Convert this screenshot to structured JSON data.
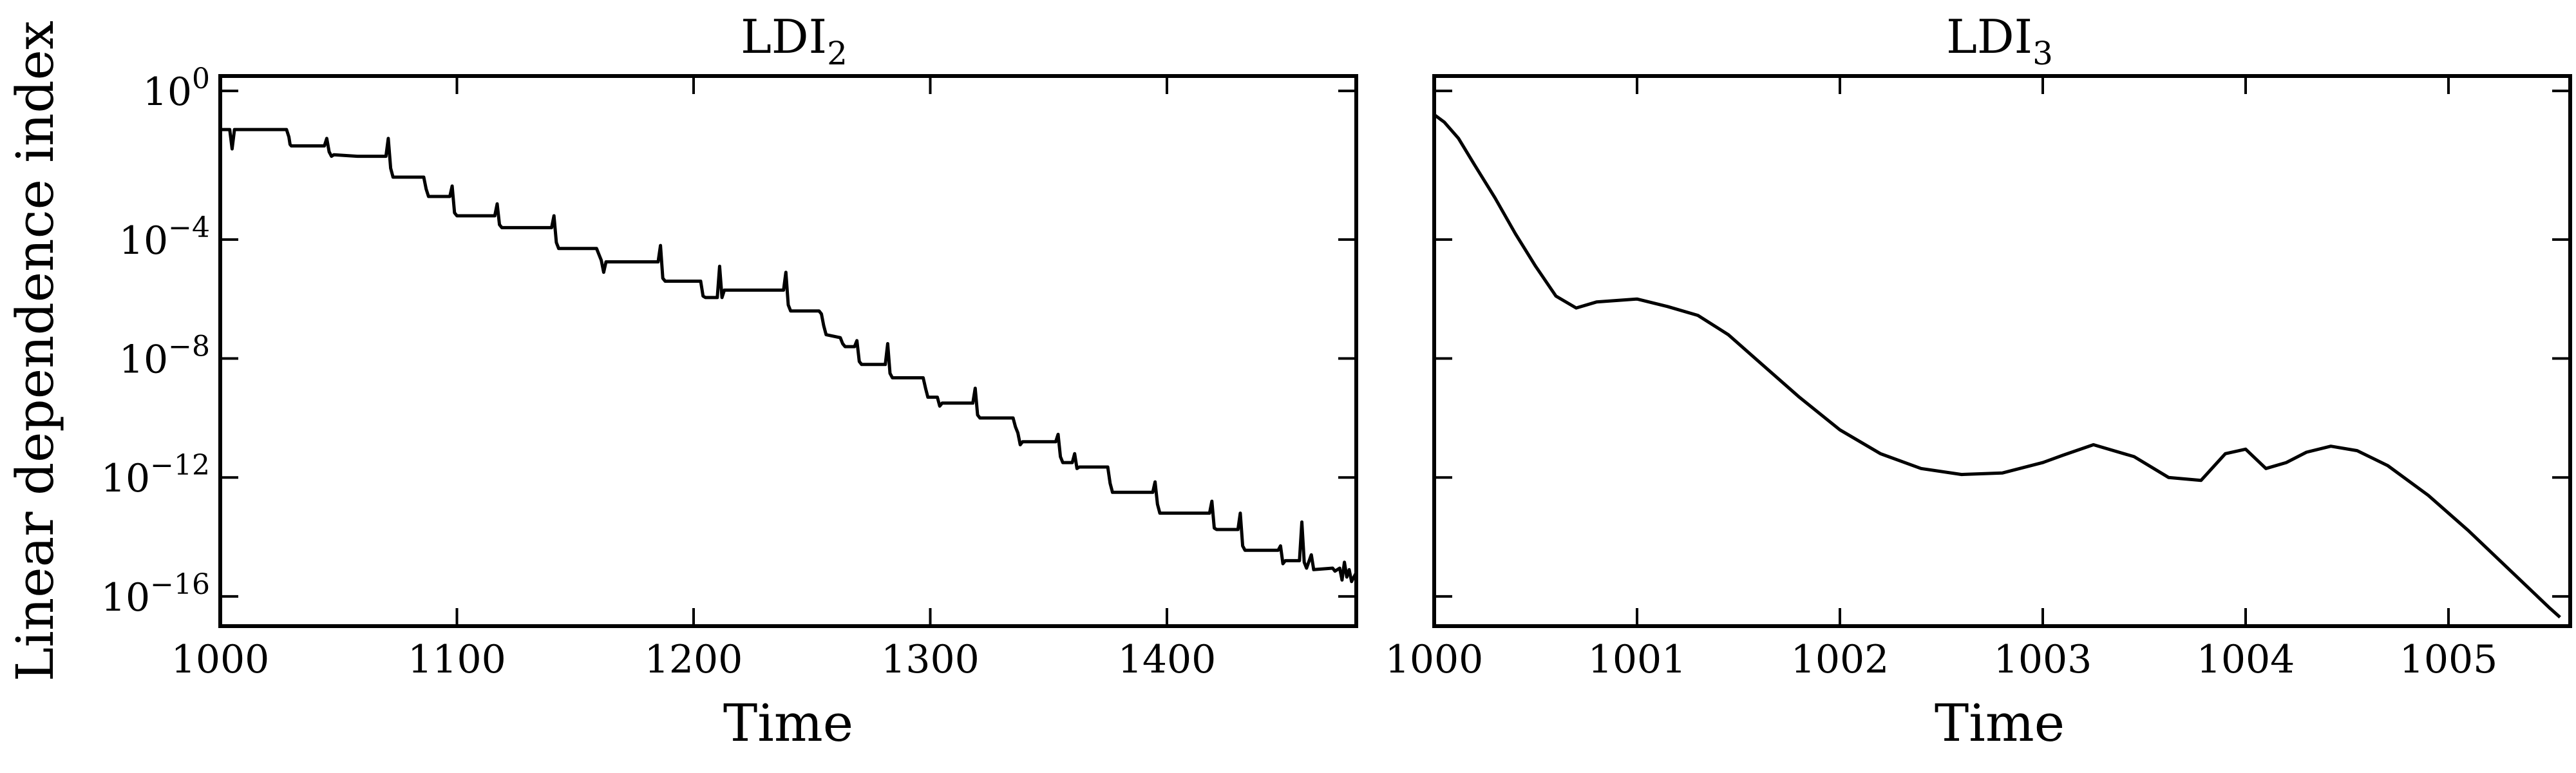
{
  "chart_data": [
    {
      "type": "line",
      "title": "LDI",
      "title_subscript": "2",
      "xlabel": "Time",
      "ylabel": "Linear dependence index",
      "y_scale": "log",
      "xlim": [
        1000,
        1480
      ],
      "ylim_exponent": [
        -17,
        1.5
      ],
      "xticks": [
        1000,
        1100,
        1200,
        1300,
        1400
      ],
      "yticks": [
        {
          "base": "10",
          "exp": "0",
          "value": 1
        },
        {
          "base": "10",
          "exp": "−4",
          "value": -4
        },
        {
          "base": "10",
          "exp": "−8",
          "value": -8
        },
        {
          "base": "10",
          "exp": "−12",
          "value": -12
        },
        {
          "base": "10",
          "exp": "−16",
          "value": -16
        }
      ],
      "series_color": "#000000",
      "series": [
        {
          "log10_y": [
            [
              1000,
              -0.3
            ],
            [
              1004,
              -0.3
            ],
            [
              1005,
              -0.95
            ],
            [
              1006,
              -0.3
            ],
            [
              1028,
              -0.3
            ],
            [
              1029,
              -0.55
            ],
            [
              1029.5,
              -0.8
            ],
            [
              1030,
              -0.85
            ],
            [
              1044,
              -0.85
            ],
            [
              1045,
              -0.6
            ],
            [
              1046,
              -1.05
            ],
            [
              1047,
              -1.2
            ],
            [
              1048,
              -1.15
            ],
            [
              1058,
              -1.2
            ],
            [
              1070,
              -1.2
            ],
            [
              1071,
              -0.6
            ],
            [
              1072,
              -1.6
            ],
            [
              1073,
              -1.9
            ],
            [
              1086,
              -1.9
            ],
            [
              1087,
              -2.3
            ],
            [
              1088,
              -2.55
            ],
            [
              1097,
              -2.55
            ],
            [
              1098,
              -2.2
            ],
            [
              1099,
              -3.1
            ],
            [
              1100,
              -3.2
            ],
            [
              1116,
              -3.2
            ],
            [
              1117,
              -2.8
            ],
            [
              1118,
              -3.5
            ],
            [
              1119,
              -3.6
            ],
            [
              1140,
              -3.6
            ],
            [
              1141,
              -3.2
            ],
            [
              1142,
              -4.1
            ],
            [
              1143,
              -4.3
            ],
            [
              1159,
              -4.3
            ],
            [
              1160,
              -4.5
            ],
            [
              1161,
              -4.7
            ],
            [
              1162,
              -5.1
            ],
            [
              1163,
              -4.75
            ],
            [
              1185,
              -4.75
            ],
            [
              1186,
              -4.2
            ],
            [
              1187,
              -5.3
            ],
            [
              1188,
              -5.4
            ],
            [
              1203,
              -5.4
            ],
            [
              1204,
              -5.9
            ],
            [
              1205,
              -5.95
            ],
            [
              1210,
              -5.95
            ],
            [
              1211,
              -4.9
            ],
            [
              1212,
              -5.95
            ],
            [
              1213,
              -5.7
            ],
            [
              1238,
              -5.7
            ],
            [
              1239,
              -5.1
            ],
            [
              1240,
              -6.2
            ],
            [
              1241,
              -6.4
            ],
            [
              1253,
              -6.4
            ],
            [
              1254,
              -6.5
            ],
            [
              1255,
              -6.9
            ],
            [
              1256,
              -7.2
            ],
            [
              1262,
              -7.3
            ],
            [
              1263,
              -7.5
            ],
            [
              1264,
              -7.6
            ],
            [
              1268,
              -7.6
            ],
            [
              1269,
              -7.4
            ],
            [
              1270,
              -8.1
            ],
            [
              1271,
              -8.2
            ],
            [
              1281,
              -8.2
            ],
            [
              1282,
              -7.5
            ],
            [
              1283,
              -8.5
            ],
            [
              1284,
              -8.65
            ],
            [
              1297,
              -8.65
            ],
            [
              1298,
              -9.0
            ],
            [
              1299,
              -9.3
            ],
            [
              1303,
              -9.3
            ],
            [
              1304,
              -9.6
            ],
            [
              1305,
              -9.5
            ],
            [
              1318,
              -9.5
            ],
            [
              1319,
              -9.0
            ],
            [
              1320,
              -9.9
            ],
            [
              1321,
              -10.0
            ],
            [
              1335,
              -10.0
            ],
            [
              1336,
              -10.3
            ],
            [
              1337,
              -10.5
            ],
            [
              1338,
              -10.9
            ],
            [
              1339,
              -10.8
            ],
            [
              1353,
              -10.8
            ],
            [
              1354,
              -10.55
            ],
            [
              1355,
              -11.3
            ],
            [
              1356,
              -11.5
            ],
            [
              1360,
              -11.5
            ],
            [
              1361,
              -11.2
            ],
            [
              1362,
              -11.7
            ],
            [
              1363,
              -11.65
            ],
            [
              1375,
              -11.65
            ],
            [
              1376,
              -12.2
            ],
            [
              1377,
              -12.5
            ],
            [
              1394,
              -12.5
            ],
            [
              1395,
              -12.15
            ],
            [
              1396,
              -12.9
            ],
            [
              1397,
              -13.2
            ],
            [
              1418,
              -13.2
            ],
            [
              1419,
              -12.8
            ],
            [
              1420,
              -13.7
            ],
            [
              1421,
              -13.75
            ],
            [
              1430,
              -13.75
            ],
            [
              1431,
              -13.2
            ],
            [
              1432,
              -14.3
            ],
            [
              1433,
              -14.45
            ],
            [
              1447,
              -14.45
            ],
            [
              1448,
              -14.3
            ],
            [
              1449,
              -14.9
            ],
            [
              1450,
              -14.8
            ],
            [
              1456,
              -14.8
            ],
            [
              1457,
              -13.5
            ],
            [
              1458,
              -14.85
            ],
            [
              1459,
              -15.05
            ],
            [
              1461,
              -14.6
            ],
            [
              1462,
              -15.1
            ],
            [
              1470,
              -15.05
            ],
            [
              1471,
              -15.15
            ],
            [
              1473,
              -15.05
            ],
            [
              1474,
              -15.45
            ],
            [
              1475,
              -14.85
            ],
            [
              1476,
              -15.35
            ],
            [
              1477,
              -15.1
            ],
            [
              1478,
              -15.5
            ],
            [
              1480,
              -15.2
            ]
          ]
        }
      ]
    },
    {
      "type": "line",
      "title": "LDI",
      "title_subscript": "3",
      "xlabel": "Time",
      "ylabel": "",
      "y_scale": "log",
      "xlim": [
        1000,
        1005.6
      ],
      "ylim_exponent": [
        -17,
        1.5
      ],
      "xticks": [
        1000,
        1001,
        1002,
        1003,
        1004,
        1005
      ],
      "yticks_shared": true,
      "series_color": "#000000",
      "series": [
        {
          "log10_y": [
            [
              1000.0,
              0.2
            ],
            [
              1000.05,
              -0.05
            ],
            [
              1000.12,
              -0.6
            ],
            [
              1000.2,
              -1.5
            ],
            [
              1000.3,
              -2.6
            ],
            [
              1000.4,
              -3.8
            ],
            [
              1000.5,
              -4.9
            ],
            [
              1000.6,
              -5.9
            ],
            [
              1000.7,
              -6.3
            ],
            [
              1000.8,
              -6.1
            ],
            [
              1001.0,
              -6.0
            ],
            [
              1001.15,
              -6.25
            ],
            [
              1001.3,
              -6.55
            ],
            [
              1001.45,
              -7.2
            ],
            [
              1001.6,
              -8.1
            ],
            [
              1001.8,
              -9.3
            ],
            [
              1002.0,
              -10.4
            ],
            [
              1002.2,
              -11.2
            ],
            [
              1002.4,
              -11.7
            ],
            [
              1002.6,
              -11.9
            ],
            [
              1002.8,
              -11.85
            ],
            [
              1003.0,
              -11.5
            ],
            [
              1003.1,
              -11.25
            ],
            [
              1003.25,
              -10.9
            ],
            [
              1003.45,
              -11.3
            ],
            [
              1003.62,
              -12.0
            ],
            [
              1003.78,
              -12.1
            ],
            [
              1003.9,
              -11.2
            ],
            [
              1004.0,
              -11.05
            ],
            [
              1004.1,
              -11.7
            ],
            [
              1004.2,
              -11.5
            ],
            [
              1004.3,
              -11.15
            ],
            [
              1004.42,
              -10.95
            ],
            [
              1004.55,
              -11.1
            ],
            [
              1004.7,
              -11.6
            ],
            [
              1004.9,
              -12.6
            ],
            [
              1005.1,
              -13.8
            ],
            [
              1005.3,
              -15.1
            ],
            [
              1005.5,
              -16.4
            ],
            [
              1005.55,
              -16.7
            ]
          ]
        }
      ]
    }
  ]
}
